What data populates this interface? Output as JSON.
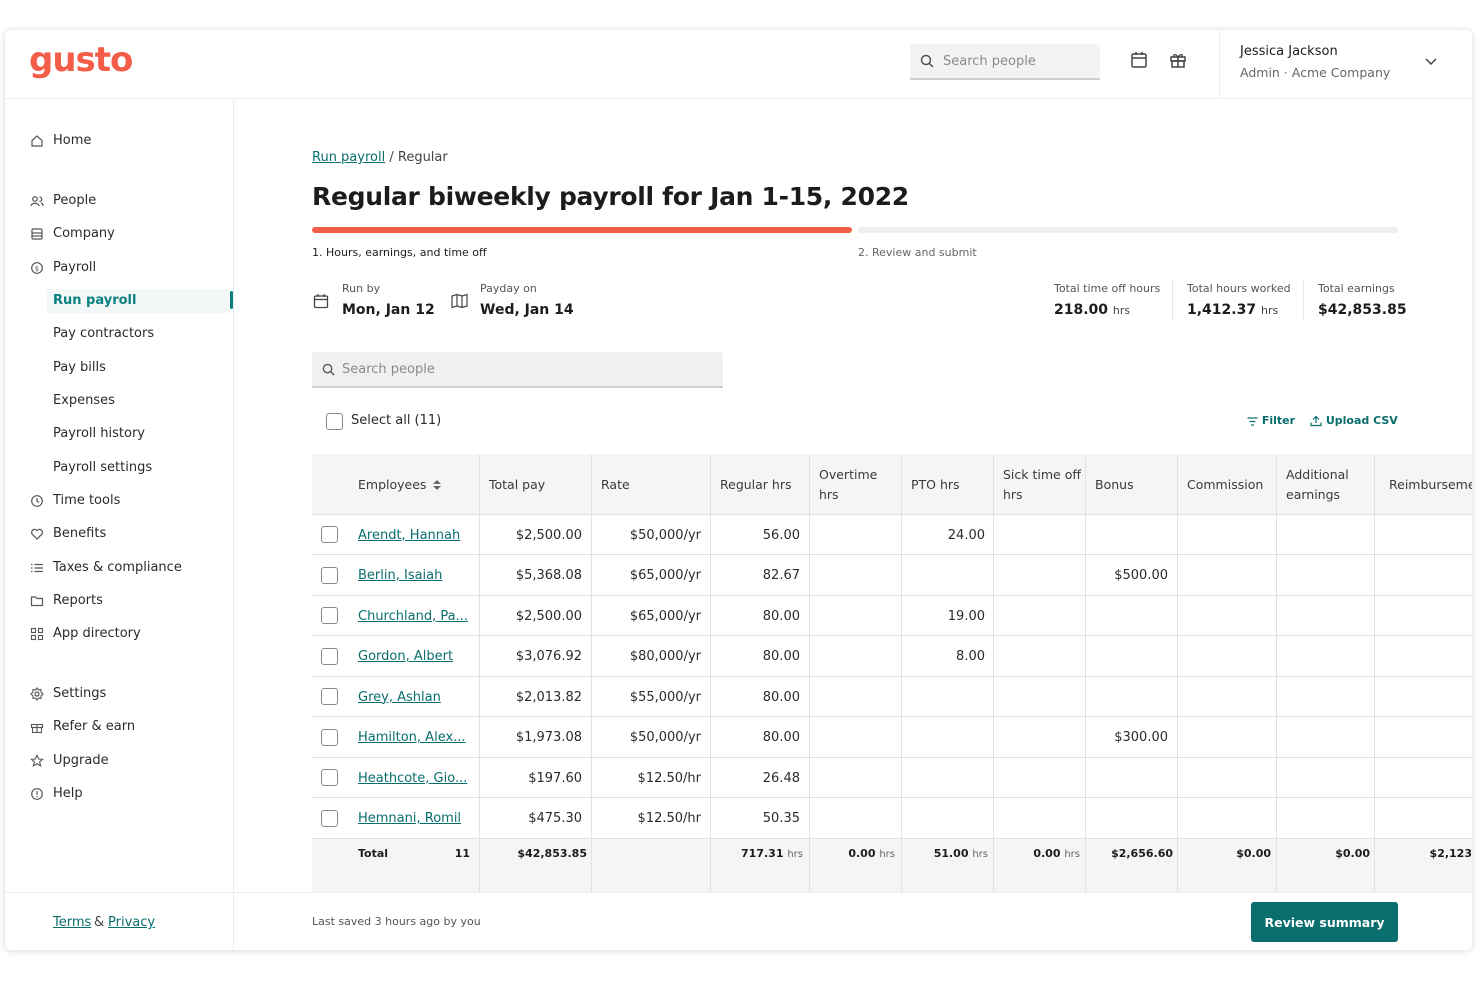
{
  "app": {
    "logo": "gusto"
  },
  "header": {
    "search_placeholder": "Search people",
    "user_name": "Jessica Jackson",
    "user_role": "Admin · Acme Company"
  },
  "sidebar": {
    "items": [
      {
        "label": "Home",
        "icon": "home-icon"
      },
      {
        "label": "People",
        "icon": "people-icon"
      },
      {
        "label": "Company",
        "icon": "company-icon"
      },
      {
        "label": "Payroll",
        "icon": "payroll-icon"
      },
      {
        "label": "Run payroll",
        "active": true
      },
      {
        "label": "Pay contractors"
      },
      {
        "label": "Pay bills"
      },
      {
        "label": "Expenses"
      },
      {
        "label": "Payroll history"
      },
      {
        "label": "Payroll settings"
      },
      {
        "label": "Time tools",
        "icon": "clock-icon"
      },
      {
        "label": "Benefits",
        "icon": "heart-icon"
      },
      {
        "label": "Taxes & compliance",
        "icon": "list-icon"
      },
      {
        "label": "Reports",
        "icon": "folder-icon"
      },
      {
        "label": "App directory",
        "icon": "grid-icon"
      },
      {
        "label": "Settings",
        "icon": "gear-icon"
      },
      {
        "label": "Refer & earn",
        "icon": "gift-icon"
      },
      {
        "label": "Upgrade",
        "icon": "star-icon"
      },
      {
        "label": "Help",
        "icon": "help-icon"
      }
    ],
    "footer": {
      "terms": "Terms",
      "amp": "&",
      "privacy": "Privacy"
    }
  },
  "main": {
    "breadcrumb_link": "Run payroll",
    "breadcrumb_rest": "/ Regular",
    "title": "Regular biweekly payroll for Jan 1-15, 2022",
    "steps": [
      "1. Hours, earnings, and time off",
      "2. Review and submit"
    ],
    "progress_step": 1,
    "run_by_label": "Run by",
    "run_by_value": "Mon, Jan 12",
    "payday_label": "Payday on",
    "payday_value": "Wed, Jan 14",
    "total_time_off_label": "Total time off hours",
    "total_time_off_value": "218.00",
    "total_hours_label": "Total hours worked",
    "total_hours_value": "1,412.37",
    "hrs_unit": "hrs",
    "total_earnings_label": "Total earnings",
    "total_earnings_value": "$42,853.85",
    "search_placeholder": "Search people",
    "select_all": "Select all (11)",
    "filter": "Filter",
    "upload_csv": "Upload CSV"
  },
  "table": {
    "columns": [
      "Employees",
      "Total pay",
      "Rate",
      "Regular hrs",
      "Overtime hrs",
      "PTO hrs",
      "Sick time off hrs",
      "Bonus",
      "Commission",
      "Additional earnings",
      "Reimburseme"
    ],
    "rows": [
      {
        "name": "Arendt, Hannah",
        "total": "$2,500.00",
        "rate": "$50,000/yr",
        "regular": "56.00",
        "pto": "24.00",
        "bonus": ""
      },
      {
        "name": "Berlin, Isaiah",
        "total": "$5,368.08",
        "rate": "$65,000/yr",
        "regular": "82.67",
        "pto": "",
        "bonus": "$500.00"
      },
      {
        "name": "Churchland, Pa...",
        "total": "$2,500.00",
        "rate": "$65,000/yr",
        "regular": "80.00",
        "pto": "19.00",
        "bonus": ""
      },
      {
        "name": "Gordon, Albert",
        "total": "$3,076.92",
        "rate": "$80,000/yr",
        "regular": "80.00",
        "pto": "8.00",
        "bonus": ""
      },
      {
        "name": "Grey, Ashlan",
        "total": "$2,013.82",
        "rate": "$55,000/yr",
        "regular": "80.00",
        "pto": "",
        "bonus": ""
      },
      {
        "name": "Hamilton, Alex...",
        "total": "$1,973.08",
        "rate": "$50,000/yr",
        "regular": "80.00",
        "pto": "",
        "bonus": "$300.00"
      },
      {
        "name": "Heathcote, Gio...",
        "total": "$197.60",
        "rate": "$12.50/hr",
        "regular": "26.48",
        "pto": "",
        "bonus": ""
      },
      {
        "name": "Hemnani, Romil",
        "total": "$475.30",
        "rate": "$12.50/hr",
        "regular": "50.35",
        "pto": "",
        "bonus": ""
      }
    ],
    "totals": {
      "label": "Total",
      "count": "11",
      "total_pay": "$42,853.85",
      "regular": "717.31",
      "overtime": "0.00",
      "pto": "51.00",
      "sick": "0.00",
      "bonus": "$2,656.60",
      "commission": "$0.00",
      "additional": "$0.00",
      "reimbursement": "$2,123"
    }
  },
  "footer": {
    "saved": "Last saved 3 hours ago by you",
    "review_button": "Review summary"
  }
}
